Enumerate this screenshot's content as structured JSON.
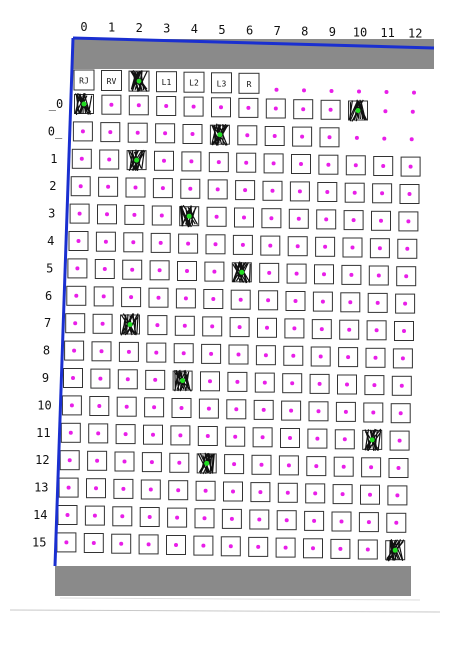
{
  "colors": {
    "border": "#1a2fd0",
    "band": "#8a8a8a",
    "dot_magenta": "#e81ee8",
    "dot_green": "#22dd22",
    "mark": "#111111"
  },
  "column_labels": [
    "0",
    "1",
    "2",
    "3",
    "4",
    "5",
    "6",
    "7",
    "8",
    "9",
    "10",
    "11",
    "12"
  ],
  "row_labels": [
    "_0",
    "0_",
    "1",
    "2",
    "3",
    "4",
    "5",
    "6",
    "7",
    "8",
    "9",
    "10",
    "11",
    "12",
    "13",
    "14",
    "15"
  ],
  "header_cells": [
    "RJ",
    "RV",
    "",
    "L1",
    "L2",
    "L3",
    "R"
  ],
  "header_filled": [
    2
  ],
  "filled_cells": [
    {
      "row": 0,
      "col": 0
    },
    {
      "row": 0,
      "col": 10
    },
    {
      "row": 1,
      "col": 5
    },
    {
      "row": 2,
      "col": 2
    },
    {
      "row": 4,
      "col": 4
    },
    {
      "row": 6,
      "col": 6
    },
    {
      "row": 8,
      "col": 2
    },
    {
      "row": 10,
      "col": 4
    },
    {
      "row": 12,
      "col": 11
    },
    {
      "row": 13,
      "col": 5
    },
    {
      "row": 16,
      "col": 12
    }
  ]
}
